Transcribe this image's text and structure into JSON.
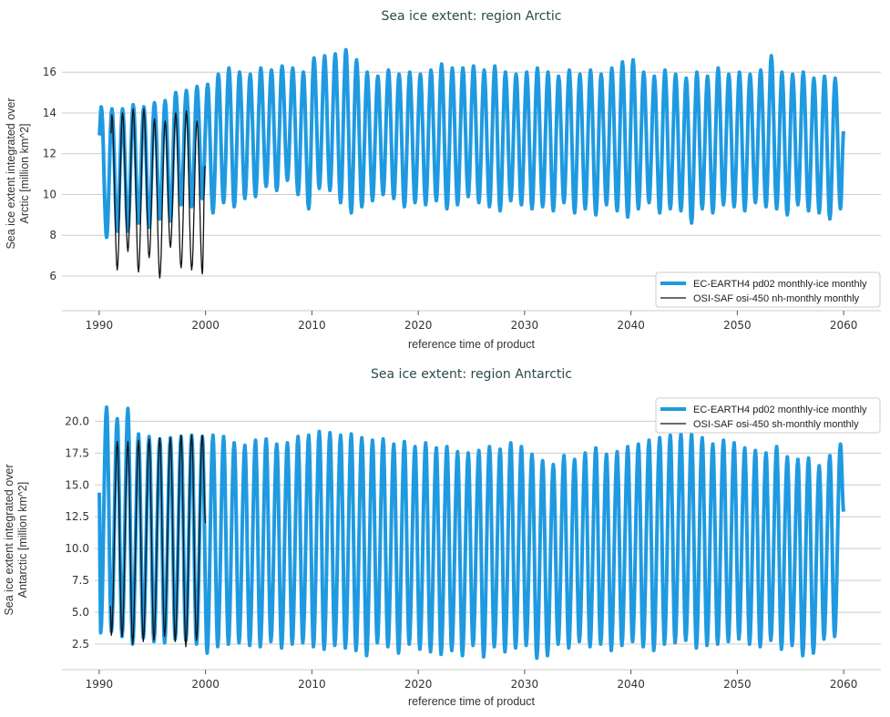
{
  "colors": {
    "model": "#1f9ae0",
    "observation": "#111111",
    "grid": "#cccccc",
    "title": "#2b4a4a"
  },
  "chart_data": [
    {
      "type": "line",
      "title": "Sea ice extent: region Arctic",
      "xlabel": "reference time of product",
      "ylabel": [
        "Sea ice extent integrated over",
        "Arctic [million km^2]"
      ],
      "xlim": [
        1986.5,
        2063.5
      ],
      "ylim": [
        4.3,
        18.2
      ],
      "xticks": [
        1990,
        2000,
        2010,
        2020,
        2030,
        2040,
        2050,
        2060
      ],
      "yticks": [
        6,
        8,
        10,
        12,
        14,
        16
      ],
      "ytick_labels": [
        "6",
        "8",
        "10",
        "12",
        "14",
        "16"
      ],
      "grid": "horizontal",
      "legend_position": "lower-right",
      "series": [
        {
          "name": "EC-EARTH4 pd02 monthly-ice monthly",
          "color": "#1f9ae0",
          "start": [
            1990.0,
            12.9
          ],
          "end": [
            2060.0,
            13.1
          ],
          "first_year": 1990,
          "annual_max_month_fraction": 0.2,
          "annual_min_month_fraction": 0.7,
          "annual_max": [
            14.3,
            14.2,
            14.2,
            14.4,
            14.3,
            14.5,
            14.6,
            15.0,
            15.1,
            15.3,
            15.4,
            15.9,
            16.2,
            16.0,
            15.9,
            16.2,
            16.1,
            16.3,
            16.2,
            16.0,
            16.7,
            16.8,
            16.9,
            17.1,
            16.6,
            16.0,
            15.8,
            16.1,
            15.9,
            16.0,
            15.9,
            16.1,
            16.4,
            16.2,
            16.2,
            16.3,
            16.1,
            16.3,
            16.0,
            15.9,
            16.0,
            16.2,
            16.0,
            15.8,
            16.1,
            15.9,
            16.1,
            15.9,
            16.2,
            16.5,
            16.6,
            16.0,
            15.8,
            16.1,
            15.9,
            15.7,
            16.0,
            15.8,
            16.2,
            15.9,
            16.0,
            15.9,
            16.1,
            16.8,
            16.0,
            15.9,
            16.0,
            15.7,
            15.8,
            15.7
          ],
          "annual_min": [
            7.9,
            8.2,
            8.2,
            8.6,
            8.4,
            8.8,
            8.7,
            9.5,
            9.4,
            9.8,
            9.1,
            9.6,
            9.4,
            9.8,
            9.9,
            10.4,
            10.2,
            10.7,
            10.0,
            9.3,
            10.3,
            10.2,
            9.6,
            9.1,
            9.4,
            9.7,
            10.0,
            9.8,
            9.4,
            9.6,
            9.5,
            9.7,
            9.3,
            9.5,
            9.9,
            9.6,
            9.4,
            9.2,
            9.7,
            9.5,
            9.3,
            9.4,
            9.2,
            9.6,
            9.1,
            9.3,
            9.0,
            9.5,
            9.2,
            8.9,
            9.3,
            9.6,
            9.1,
            9.3,
            9.2,
            8.6,
            9.3,
            9.1,
            9.5,
            9.4,
            9.2,
            9.6,
            9.4,
            9.3,
            9.0,
            9.5,
            9.2,
            9.1,
            8.8,
            9.3
          ]
        },
        {
          "name": "OSI-SAF osi-450 nh-monthly monthly",
          "color": "#111111",
          "start": [
            1991.1,
            13.0
          ],
          "end": [
            1999.95,
            11.4
          ],
          "first_year": 1991,
          "annual_max_month_fraction": 0.2,
          "annual_min_month_fraction": 0.7,
          "annual_max": [
            13.9,
            14.0,
            14.2,
            14.2,
            13.7,
            13.6,
            14.0,
            14.1,
            13.6
          ],
          "annual_min": [
            6.3,
            7.2,
            6.2,
            6.9,
            5.9,
            7.4,
            6.4,
            6.3,
            6.1
          ]
        }
      ]
    },
    {
      "type": "line",
      "title": "Sea ice extent: region Antarctic",
      "xlabel": "reference time of product",
      "ylabel": [
        "Sea ice extent integrated over",
        "Antarctic [million km^2]"
      ],
      "xlim": [
        1986.5,
        2063.5
      ],
      "ylim": [
        0.5,
        21.6
      ],
      "xticks": [
        1990,
        2000,
        2010,
        2020,
        2030,
        2040,
        2050,
        2060
      ],
      "yticks": [
        2.5,
        5.0,
        7.5,
        10.0,
        12.5,
        15.0,
        17.5,
        20.0
      ],
      "ytick_labels": [
        "2.5",
        "5.0",
        "7.5",
        "10.0",
        "12.5",
        "15.0",
        "17.5",
        "20.0"
      ],
      "grid": "horizontal",
      "legend_position": "upper-right",
      "series": [
        {
          "name": "EC-EARTH4 pd02 monthly-ice monthly",
          "color": "#1f9ae0",
          "start": [
            1990.0,
            14.4
          ],
          "end": [
            2060.0,
            12.9
          ],
          "first_year": 1990,
          "annual_max_month_fraction": 0.7,
          "annual_min_month_fraction": 0.15,
          "annual_max": [
            21.1,
            20.2,
            21.0,
            19.0,
            18.8,
            18.6,
            18.7,
            18.8,
            18.9,
            18.8,
            18.9,
            18.8,
            18.3,
            18.1,
            18.5,
            18.6,
            18.2,
            18.3,
            18.8,
            18.9,
            19.2,
            19.1,
            18.9,
            19.0,
            18.7,
            18.5,
            18.6,
            18.2,
            18.4,
            18.0,
            18.3,
            17.9,
            18.0,
            17.6,
            17.5,
            17.7,
            18.0,
            17.8,
            18.3,
            18.0,
            17.4,
            16.9,
            16.6,
            17.3,
            17.0,
            17.5,
            17.9,
            17.4,
            17.6,
            18.0,
            18.2,
            18.5,
            18.7,
            18.9,
            19.0,
            19.0,
            18.7,
            18.2,
            18.5,
            18.3,
            17.9,
            17.7,
            17.5,
            18.0,
            17.2,
            17.0,
            17.1,
            16.5,
            17.3,
            18.2
          ],
          "annual_min": [
            3.4,
            3.5,
            3.1,
            2.5,
            3.0,
            2.7,
            2.6,
            2.9,
            2.8,
            2.5,
            1.8,
            2.3,
            2.5,
            2.6,
            2.4,
            2.3,
            2.7,
            2.2,
            2.5,
            2.6,
            2.3,
            2.1,
            2.4,
            2.2,
            2.0,
            1.6,
            2.6,
            2.3,
            1.8,
            2.5,
            2.1,
            1.9,
            1.7,
            2.0,
            1.6,
            2.4,
            1.5,
            2.3,
            1.9,
            2.2,
            2.4,
            1.4,
            1.6,
            2.5,
            2.2,
            2.7,
            2.3,
            2.5,
            2.0,
            2.4,
            2.7,
            2.3,
            2.0,
            2.5,
            2.6,
            2.8,
            2.2,
            2.4,
            2.5,
            2.7,
            2.9,
            2.5,
            2.3,
            2.8,
            2.1,
            2.4,
            1.6,
            1.8,
            2.9,
            3.1
          ]
        },
        {
          "name": "OSI-SAF osi-450 sh-monthly monthly",
          "color": "#111111",
          "start": [
            1991.05,
            5.5
          ],
          "end": [
            2000.0,
            12.0
          ],
          "first_year": 1991,
          "annual_max_month_fraction": 0.7,
          "annual_min_month_fraction": 0.15,
          "annual_max": [
            18.4,
            18.4,
            18.5,
            18.6,
            18.7,
            18.7,
            18.9,
            18.9,
            18.9
          ],
          "annual_min": [
            3.2,
            3.1,
            2.5,
            2.7,
            2.8,
            3.1,
            2.7,
            2.3,
            2.8
          ]
        }
      ]
    }
  ]
}
